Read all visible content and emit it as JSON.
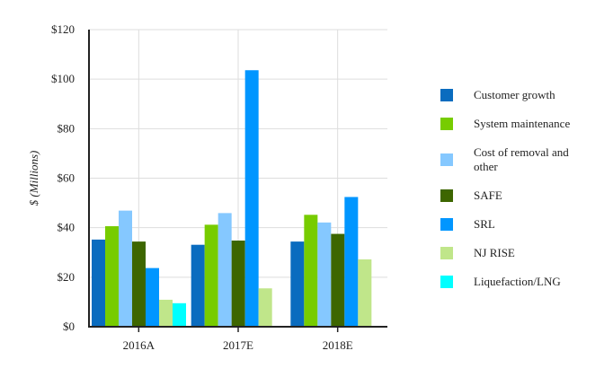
{
  "chart_data": {
    "type": "bar",
    "title": "",
    "xlabel": "",
    "ylabel": "$ (Millions)",
    "ylim": [
      0,
      120
    ],
    "yticks": [
      "$0",
      "$20",
      "$40",
      "$60",
      "$80",
      "$100",
      "$120"
    ],
    "ytick_values": [
      0,
      20,
      40,
      60,
      80,
      100,
      120
    ],
    "grid": true,
    "legend_placement": "right",
    "categories": [
      "2016A",
      "2017E",
      "2018E"
    ],
    "series": [
      {
        "name": "Customer growth",
        "color": "#0a6cbf",
        "values": [
          35.2,
          33.1,
          34.4
        ]
      },
      {
        "name": "System maintenance",
        "color": "#77cc00",
        "values": [
          40.6,
          41.2,
          45.2
        ]
      },
      {
        "name": "Cost of removal and other",
        "color": "#85c8ff",
        "values": [
          46.9,
          45.9,
          42.1
        ]
      },
      {
        "name": "SAFE",
        "color": "#3d6600",
        "values": [
          34.4,
          34.8,
          37.5
        ]
      },
      {
        "name": "SRL",
        "color": "#0096ff",
        "values": [
          23.7,
          103.6,
          52.4
        ]
      },
      {
        "name": "NJ RISE",
        "color": "#c0e68a",
        "values": [
          10.9,
          15.5,
          27.2
        ]
      },
      {
        "name": "Liquefaction/LNG",
        "color": "#00ffff",
        "values": [
          9.5,
          null,
          null
        ]
      }
    ]
  }
}
